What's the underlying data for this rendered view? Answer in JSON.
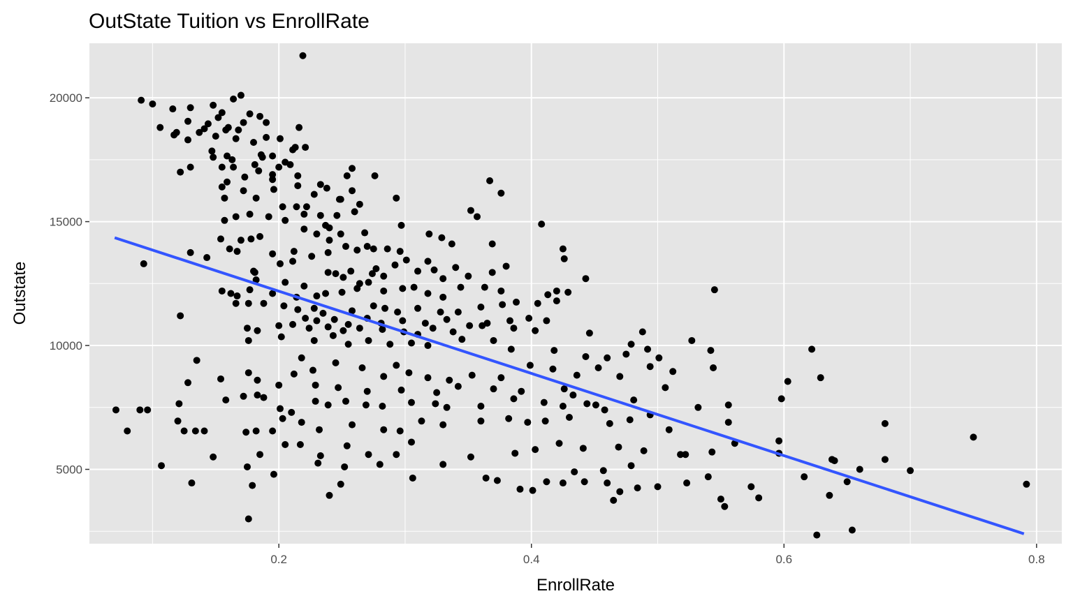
{
  "chart_data": {
    "type": "scatter",
    "title": "OutState Tuition vs EnrollRate",
    "xlabel": "EnrollRate",
    "ylabel": "Outstate",
    "xlim": [
      0.05,
      0.82
    ],
    "ylim": [
      2000,
      22200
    ],
    "x_ticks": [
      0.2,
      0.4,
      0.6,
      0.8
    ],
    "x_tick_labels": [
      "0.2",
      "0.4",
      "0.6",
      "0.8"
    ],
    "x_minor_ticks": [
      0.1,
      0.3,
      0.5,
      0.7
    ],
    "y_ticks": [
      5000,
      10000,
      15000,
      20000
    ],
    "y_tick_labels": [
      "5000",
      "10000",
      "15000",
      "20000"
    ],
    "y_minor_ticks": [
      2500,
      7500,
      12500,
      17500
    ],
    "grid": true,
    "background": "#e5e5e5",
    "point_color": "#000000",
    "trend_line": {
      "color": "#3355ff",
      "x": [
        0.07,
        0.79
      ],
      "y": [
        14350,
        2400
      ]
    },
    "points": [
      [
        0.219,
        21700
      ],
      [
        0.17,
        20100
      ],
      [
        0.091,
        19900
      ],
      [
        0.1,
        19750
      ],
      [
        0.164,
        19950
      ],
      [
        0.148,
        19700
      ],
      [
        0.116,
        19550
      ],
      [
        0.13,
        19600
      ],
      [
        0.155,
        19400
      ],
      [
        0.152,
        19200
      ],
      [
        0.177,
        19350
      ],
      [
        0.185,
        19250
      ],
      [
        0.19,
        19000
      ],
      [
        0.172,
        19000
      ],
      [
        0.128,
        19050
      ],
      [
        0.144,
        18950
      ],
      [
        0.16,
        18800
      ],
      [
        0.106,
        18800
      ],
      [
        0.117,
        18500
      ],
      [
        0.119,
        18600
      ],
      [
        0.137,
        18600
      ],
      [
        0.141,
        18750
      ],
      [
        0.158,
        18700
      ],
      [
        0.168,
        18700
      ],
      [
        0.15,
        18450
      ],
      [
        0.166,
        18350
      ],
      [
        0.128,
        18300
      ],
      [
        0.18,
        18200
      ],
      [
        0.19,
        18400
      ],
      [
        0.201,
        18350
      ],
      [
        0.213,
        18000
      ],
      [
        0.216,
        18800
      ],
      [
        0.221,
        18000
      ],
      [
        0.211,
        17900
      ],
      [
        0.147,
        17850
      ],
      [
        0.159,
        17650
      ],
      [
        0.187,
        17600
      ],
      [
        0.186,
        17700
      ],
      [
        0.195,
        17650
      ],
      [
        0.148,
        17600
      ],
      [
        0.163,
        17500
      ],
      [
        0.205,
        17400
      ],
      [
        0.181,
        17300
      ],
      [
        0.155,
        17200
      ],
      [
        0.13,
        17200
      ],
      [
        0.122,
        17000
      ],
      [
        0.164,
        17200
      ],
      [
        0.184,
        17050
      ],
      [
        0.209,
        17300
      ],
      [
        0.2,
        17200
      ],
      [
        0.195,
        16900
      ],
      [
        0.215,
        16850
      ],
      [
        0.173,
        16800
      ],
      [
        0.159,
        16600
      ],
      [
        0.195,
        16700
      ],
      [
        0.233,
        16500
      ],
      [
        0.258,
        17150
      ],
      [
        0.254,
        16850
      ],
      [
        0.276,
        16850
      ],
      [
        0.238,
        16350
      ],
      [
        0.215,
        16450
      ],
      [
        0.155,
        16400
      ],
      [
        0.157,
        15950
      ],
      [
        0.172,
        16250
      ],
      [
        0.196,
        16300
      ],
      [
        0.228,
        16100
      ],
      [
        0.258,
        16250
      ],
      [
        0.248,
        15900
      ],
      [
        0.293,
        15950
      ],
      [
        0.264,
        15700
      ],
      [
        0.249,
        15900
      ],
      [
        0.182,
        15950
      ],
      [
        0.203,
        15600
      ],
      [
        0.214,
        15600
      ],
      [
        0.222,
        15600
      ],
      [
        0.26,
        15400
      ],
      [
        0.246,
        15250
      ],
      [
        0.166,
        15200
      ],
      [
        0.177,
        15300
      ],
      [
        0.192,
        15200
      ],
      [
        0.157,
        15050
      ],
      [
        0.22,
        15300
      ],
      [
        0.233,
        15250
      ],
      [
        0.205,
        15050
      ],
      [
        0.24,
        14750
      ],
      [
        0.237,
        14850
      ],
      [
        0.297,
        14850
      ],
      [
        0.352,
        15450
      ],
      [
        0.357,
        15200
      ],
      [
        0.367,
        16650
      ],
      [
        0.376,
        16150
      ],
      [
        0.408,
        14900
      ],
      [
        0.268,
        14550
      ],
      [
        0.249,
        14500
      ],
      [
        0.23,
        14500
      ],
      [
        0.22,
        14700
      ],
      [
        0.185,
        14400
      ],
      [
        0.17,
        14250
      ],
      [
        0.178,
        14300
      ],
      [
        0.154,
        14300
      ],
      [
        0.195,
        13700
      ],
      [
        0.167,
        13800
      ],
      [
        0.161,
        13900
      ],
      [
        0.13,
        13750
      ],
      [
        0.143,
        13550
      ],
      [
        0.093,
        13300
      ],
      [
        0.201,
        13300
      ],
      [
        0.211,
        13400
      ],
      [
        0.212,
        13800
      ],
      [
        0.226,
        13600
      ],
      [
        0.239,
        13750
      ],
      [
        0.24,
        14250
      ],
      [
        0.253,
        14000
      ],
      [
        0.262,
        13850
      ],
      [
        0.27,
        14000
      ],
      [
        0.275,
        13900
      ],
      [
        0.286,
        13900
      ],
      [
        0.296,
        13800
      ],
      [
        0.319,
        14500
      ],
      [
        0.329,
        14350
      ],
      [
        0.337,
        14100
      ],
      [
        0.369,
        14100
      ],
      [
        0.425,
        13900
      ],
      [
        0.426,
        13500
      ],
      [
        0.181,
        12950
      ],
      [
        0.18,
        13000
      ],
      [
        0.182,
        12650
      ],
      [
        0.205,
        12550
      ],
      [
        0.22,
        12400
      ],
      [
        0.239,
        12950
      ],
      [
        0.245,
        12900
      ],
      [
        0.251,
        12750
      ],
      [
        0.257,
        13000
      ],
      [
        0.264,
        12500
      ],
      [
        0.271,
        12550
      ],
      [
        0.274,
        12900
      ],
      [
        0.277,
        13100
      ],
      [
        0.283,
        12800
      ],
      [
        0.292,
        13250
      ],
      [
        0.301,
        13450
      ],
      [
        0.31,
        13000
      ],
      [
        0.318,
        13400
      ],
      [
        0.323,
        13050
      ],
      [
        0.33,
        12700
      ],
      [
        0.34,
        13150
      ],
      [
        0.35,
        12800
      ],
      [
        0.369,
        12950
      ],
      [
        0.38,
        13200
      ],
      [
        0.155,
        12200
      ],
      [
        0.162,
        12100
      ],
      [
        0.167,
        12000
      ],
      [
        0.177,
        12250
      ],
      [
        0.195,
        12100
      ],
      [
        0.214,
        11950
      ],
      [
        0.23,
        12000
      ],
      [
        0.237,
        12100
      ],
      [
        0.25,
        12150
      ],
      [
        0.262,
        12300
      ],
      [
        0.283,
        12200
      ],
      [
        0.298,
        12300
      ],
      [
        0.307,
        12350
      ],
      [
        0.318,
        12100
      ],
      [
        0.33,
        11950
      ],
      [
        0.344,
        12350
      ],
      [
        0.363,
        12350
      ],
      [
        0.376,
        12200
      ],
      [
        0.413,
        12050
      ],
      [
        0.42,
        12200
      ],
      [
        0.429,
        12150
      ],
      [
        0.443,
        12700
      ],
      [
        0.545,
        12250
      ],
      [
        0.122,
        11200
      ],
      [
        0.166,
        11700
      ],
      [
        0.176,
        11700
      ],
      [
        0.188,
        11700
      ],
      [
        0.204,
        11600
      ],
      [
        0.215,
        11450
      ],
      [
        0.228,
        11500
      ],
      [
        0.235,
        11300
      ],
      [
        0.258,
        11400
      ],
      [
        0.275,
        11600
      ],
      [
        0.284,
        11500
      ],
      [
        0.294,
        11350
      ],
      [
        0.31,
        11500
      ],
      [
        0.328,
        11350
      ],
      [
        0.342,
        11350
      ],
      [
        0.36,
        11550
      ],
      [
        0.377,
        11650
      ],
      [
        0.388,
        11750
      ],
      [
        0.405,
        11700
      ],
      [
        0.42,
        11800
      ],
      [
        0.221,
        11100
      ],
      [
        0.23,
        11000
      ],
      [
        0.244,
        11050
      ],
      [
        0.255,
        10850
      ],
      [
        0.27,
        11100
      ],
      [
        0.281,
        10900
      ],
      [
        0.298,
        11000
      ],
      [
        0.316,
        10900
      ],
      [
        0.333,
        11050
      ],
      [
        0.351,
        10800
      ],
      [
        0.365,
        10900
      ],
      [
        0.383,
        11000
      ],
      [
        0.398,
        11100
      ],
      [
        0.412,
        11000
      ],
      [
        0.446,
        10500
      ],
      [
        0.175,
        10700
      ],
      [
        0.183,
        10600
      ],
      [
        0.2,
        10800
      ],
      [
        0.211,
        10850
      ],
      [
        0.224,
        10700
      ],
      [
        0.239,
        10750
      ],
      [
        0.251,
        10600
      ],
      [
        0.264,
        10700
      ],
      [
        0.282,
        10650
      ],
      [
        0.299,
        10550
      ],
      [
        0.31,
        10450
      ],
      [
        0.322,
        10700
      ],
      [
        0.338,
        10550
      ],
      [
        0.361,
        10800
      ],
      [
        0.386,
        10700
      ],
      [
        0.403,
        10600
      ],
      [
        0.176,
        10200
      ],
      [
        0.202,
        10350
      ],
      [
        0.228,
        10200
      ],
      [
        0.243,
        10400
      ],
      [
        0.255,
        10050
      ],
      [
        0.271,
        10200
      ],
      [
        0.288,
        10050
      ],
      [
        0.305,
        10100
      ],
      [
        0.318,
        10000
      ],
      [
        0.345,
        10250
      ],
      [
        0.37,
        10200
      ],
      [
        0.384,
        9850
      ],
      [
        0.418,
        9800
      ],
      [
        0.443,
        9550
      ],
      [
        0.46,
        9500
      ],
      [
        0.475,
        9650
      ],
      [
        0.492,
        9850
      ],
      [
        0.501,
        9500
      ],
      [
        0.479,
        10050
      ],
      [
        0.488,
        10550
      ],
      [
        0.527,
        10200
      ],
      [
        0.542,
        9800
      ],
      [
        0.622,
        9850
      ],
      [
        0.135,
        9400
      ],
      [
        0.176,
        8900
      ],
      [
        0.183,
        8600
      ],
      [
        0.2,
        8400
      ],
      [
        0.212,
        8850
      ],
      [
        0.218,
        9500
      ],
      [
        0.227,
        9000
      ],
      [
        0.245,
        9300
      ],
      [
        0.266,
        9100
      ],
      [
        0.283,
        8750
      ],
      [
        0.293,
        9200
      ],
      [
        0.303,
        8900
      ],
      [
        0.318,
        8700
      ],
      [
        0.335,
        8600
      ],
      [
        0.353,
        8800
      ],
      [
        0.376,
        8700
      ],
      [
        0.399,
        9200
      ],
      [
        0.417,
        9050
      ],
      [
        0.436,
        8800
      ],
      [
        0.453,
        9100
      ],
      [
        0.47,
        8750
      ],
      [
        0.494,
        9150
      ],
      [
        0.512,
        8950
      ],
      [
        0.544,
        9100
      ],
      [
        0.128,
        8500
      ],
      [
        0.154,
        8650
      ],
      [
        0.229,
        8400
      ],
      [
        0.247,
        8300
      ],
      [
        0.27,
        8150
      ],
      [
        0.297,
        8200
      ],
      [
        0.325,
        8100
      ],
      [
        0.342,
        8350
      ],
      [
        0.37,
        8250
      ],
      [
        0.392,
        8150
      ],
      [
        0.426,
        8250
      ],
      [
        0.433,
        8000
      ],
      [
        0.451,
        7600
      ],
      [
        0.481,
        7800
      ],
      [
        0.506,
        8300
      ],
      [
        0.603,
        8550
      ],
      [
        0.629,
        8700
      ],
      [
        0.071,
        7400
      ],
      [
        0.09,
        7400
      ],
      [
        0.096,
        7400
      ],
      [
        0.121,
        7650
      ],
      [
        0.158,
        7800
      ],
      [
        0.172,
        7950
      ],
      [
        0.183,
        8000
      ],
      [
        0.188,
        7900
      ],
      [
        0.201,
        7450
      ],
      [
        0.21,
        7300
      ],
      [
        0.229,
        7750
      ],
      [
        0.239,
        7600
      ],
      [
        0.253,
        7750
      ],
      [
        0.269,
        7600
      ],
      [
        0.282,
        7550
      ],
      [
        0.305,
        7700
      ],
      [
        0.324,
        7650
      ],
      [
        0.333,
        7500
      ],
      [
        0.36,
        7550
      ],
      [
        0.386,
        7850
      ],
      [
        0.41,
        7700
      ],
      [
        0.425,
        7550
      ],
      [
        0.444,
        7650
      ],
      [
        0.458,
        7400
      ],
      [
        0.494,
        7200
      ],
      [
        0.532,
        7500
      ],
      [
        0.556,
        7600
      ],
      [
        0.598,
        7850
      ],
      [
        0.08,
        6550
      ],
      [
        0.12,
        6950
      ],
      [
        0.125,
        6550
      ],
      [
        0.134,
        6550
      ],
      [
        0.141,
        6550
      ],
      [
        0.174,
        6500
      ],
      [
        0.182,
        6550
      ],
      [
        0.195,
        6550
      ],
      [
        0.203,
        7050
      ],
      [
        0.218,
        6900
      ],
      [
        0.232,
        6600
      ],
      [
        0.258,
        6800
      ],
      [
        0.283,
        6600
      ],
      [
        0.296,
        6550
      ],
      [
        0.313,
        6950
      ],
      [
        0.33,
        6800
      ],
      [
        0.36,
        6950
      ],
      [
        0.382,
        7050
      ],
      [
        0.397,
        6900
      ],
      [
        0.411,
        6950
      ],
      [
        0.43,
        7100
      ],
      [
        0.462,
        6850
      ],
      [
        0.478,
        7000
      ],
      [
        0.509,
        6600
      ],
      [
        0.556,
        6900
      ],
      [
        0.68,
        6850
      ],
      [
        0.148,
        5500
      ],
      [
        0.185,
        5600
      ],
      [
        0.205,
        6000
      ],
      [
        0.217,
        6000
      ],
      [
        0.233,
        5550
      ],
      [
        0.254,
        5950
      ],
      [
        0.271,
        5600
      ],
      [
        0.293,
        5600
      ],
      [
        0.305,
        6100
      ],
      [
        0.352,
        5500
      ],
      [
        0.387,
        5650
      ],
      [
        0.403,
        5800
      ],
      [
        0.422,
        6050
      ],
      [
        0.441,
        5850
      ],
      [
        0.469,
        5900
      ],
      [
        0.489,
        5750
      ],
      [
        0.522,
        5600
      ],
      [
        0.543,
        5700
      ],
      [
        0.561,
        6050
      ],
      [
        0.596,
        5650
      ],
      [
        0.596,
        6150
      ],
      [
        0.638,
        5400
      ],
      [
        0.68,
        5400
      ],
      [
        0.107,
        5150
      ],
      [
        0.175,
        5100
      ],
      [
        0.196,
        4800
      ],
      [
        0.231,
        5250
      ],
      [
        0.252,
        5100
      ],
      [
        0.28,
        5200
      ],
      [
        0.306,
        4650
      ],
      [
        0.33,
        5200
      ],
      [
        0.364,
        4650
      ],
      [
        0.373,
        4550
      ],
      [
        0.391,
        4200
      ],
      [
        0.401,
        4150
      ],
      [
        0.412,
        4500
      ],
      [
        0.425,
        4450
      ],
      [
        0.434,
        4900
      ],
      [
        0.442,
        4500
      ],
      [
        0.457,
        4950
      ],
      [
        0.46,
        4450
      ],
      [
        0.479,
        5150
      ],
      [
        0.5,
        4300
      ],
      [
        0.518,
        5600
      ],
      [
        0.523,
        4450
      ],
      [
        0.54,
        4700
      ],
      [
        0.55,
        3800
      ],
      [
        0.553,
        3500
      ],
      [
        0.574,
        4300
      ],
      [
        0.58,
        3850
      ],
      [
        0.616,
        4700
      ],
      [
        0.636,
        3950
      ],
      [
        0.64,
        5350
      ],
      [
        0.65,
        4500
      ],
      [
        0.66,
        5000
      ],
      [
        0.7,
        4950
      ],
      [
        0.75,
        6300
      ],
      [
        0.792,
        4400
      ],
      [
        0.131,
        4450
      ],
      [
        0.179,
        4350
      ],
      [
        0.24,
        3950
      ],
      [
        0.249,
        4400
      ],
      [
        0.465,
        3750
      ],
      [
        0.47,
        4100
      ],
      [
        0.484,
        4250
      ],
      [
        0.176,
        3000
      ],
      [
        0.626,
        2350
      ],
      [
        0.654,
        2550
      ]
    ]
  }
}
